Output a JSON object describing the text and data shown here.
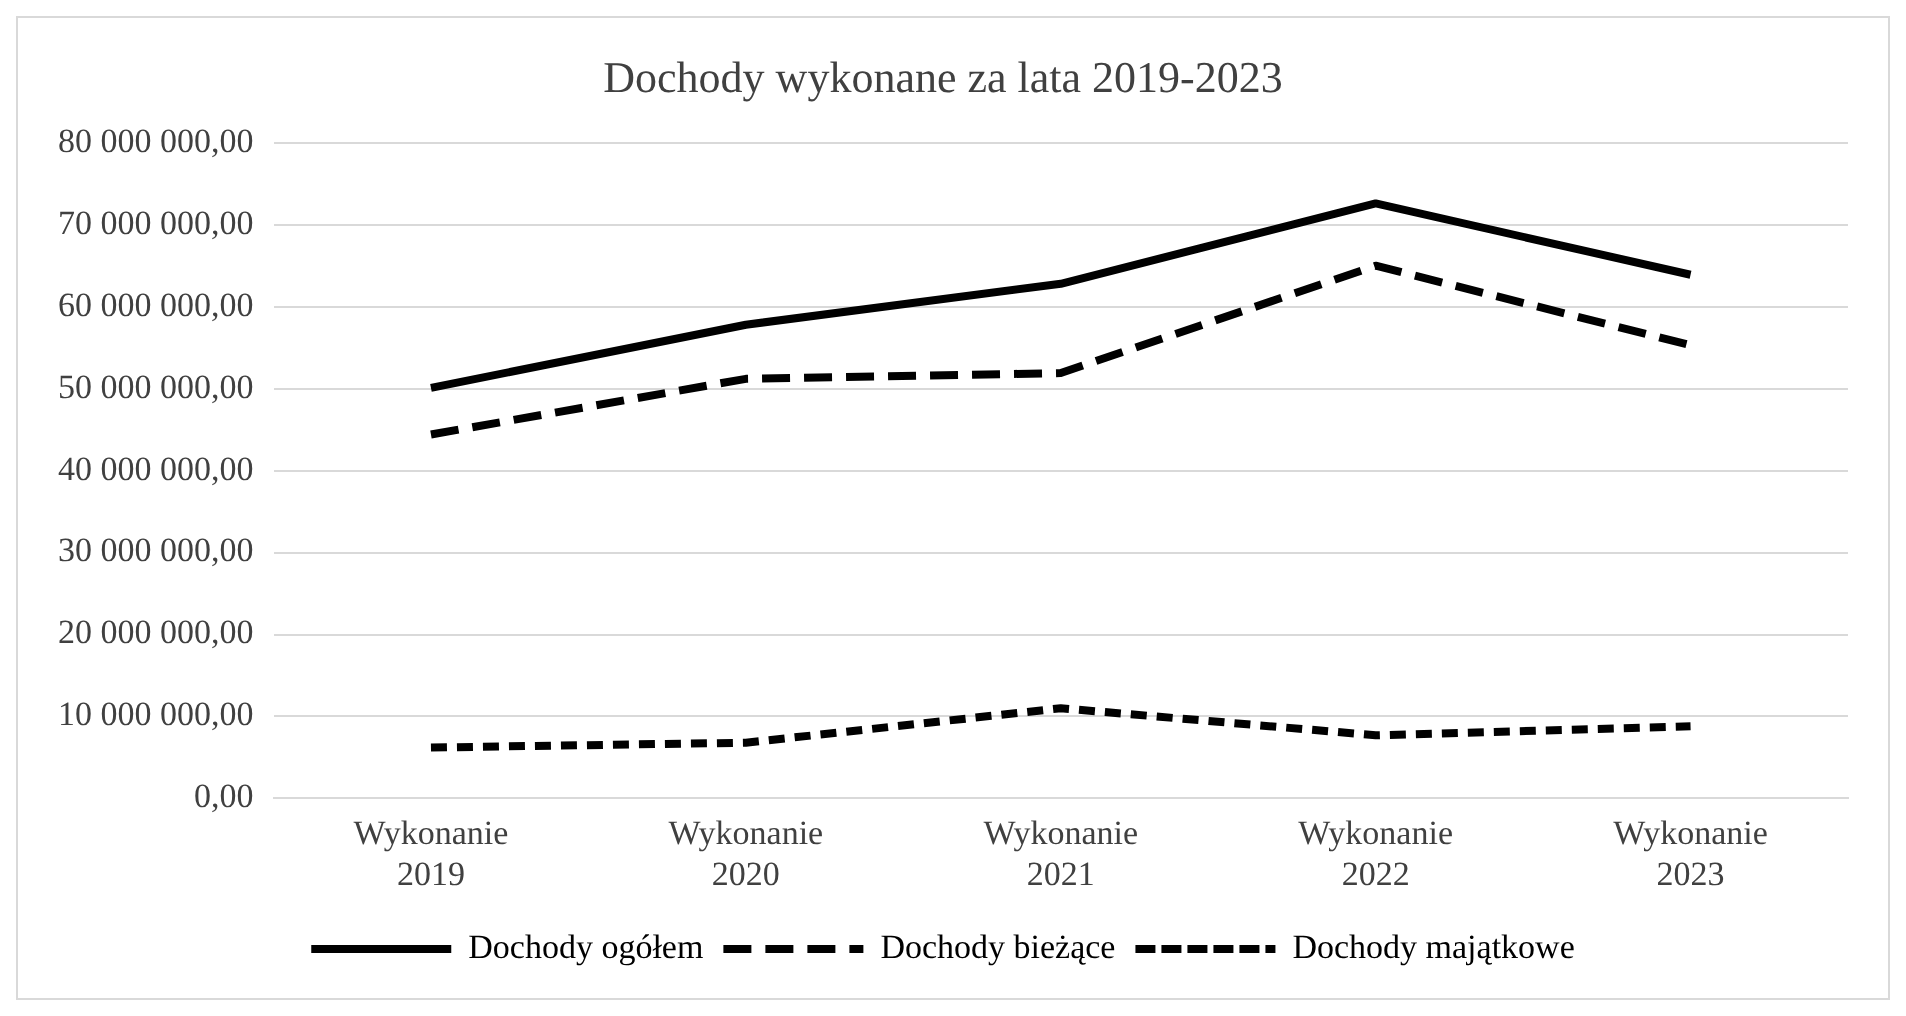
{
  "chart_data": {
    "type": "line",
    "title": "Dochody wykonane za lata 2019-2023",
    "categories": [
      "Wykonanie 2019",
      "Wykonanie 2020",
      "Wykonanie 2021",
      "Wykonanie 2022",
      "Wykonanie 2023"
    ],
    "series": [
      {
        "name": "Dochody ogółem",
        "color": "#000000",
        "line_style": "solid",
        "values": [
          50100000,
          57800000,
          62800000,
          72600000,
          63900000
        ]
      },
      {
        "name": "Dochody bieżące",
        "color": "#000000",
        "line_style": "dashed",
        "values": [
          44400000,
          51200000,
          51900000,
          65000000,
          55300000
        ]
      },
      {
        "name": "Dochody majątkowe",
        "color": "#000000",
        "line_style": "dotted",
        "values": [
          6200000,
          6800000,
          11000000,
          7700000,
          8800000
        ]
      }
    ],
    "ylim": [
      0,
      80000000
    ],
    "yticks": [
      {
        "value": 0,
        "label": "0,00"
      },
      {
        "value": 10000000,
        "label": "10 000 000,00"
      },
      {
        "value": 20000000,
        "label": "20 000 000,00"
      },
      {
        "value": 30000000,
        "label": "30 000 000,00"
      },
      {
        "value": 40000000,
        "label": "40 000 000,00"
      },
      {
        "value": 50000000,
        "label": "50 000 000,00"
      },
      {
        "value": 60000000,
        "label": "60 000 000,00"
      },
      {
        "value": 70000000,
        "label": "70 000 000,00"
      },
      {
        "value": 80000000,
        "label": "80 000 000,00"
      }
    ],
    "grid": "y",
    "legend": "bottom",
    "marker": "none"
  }
}
